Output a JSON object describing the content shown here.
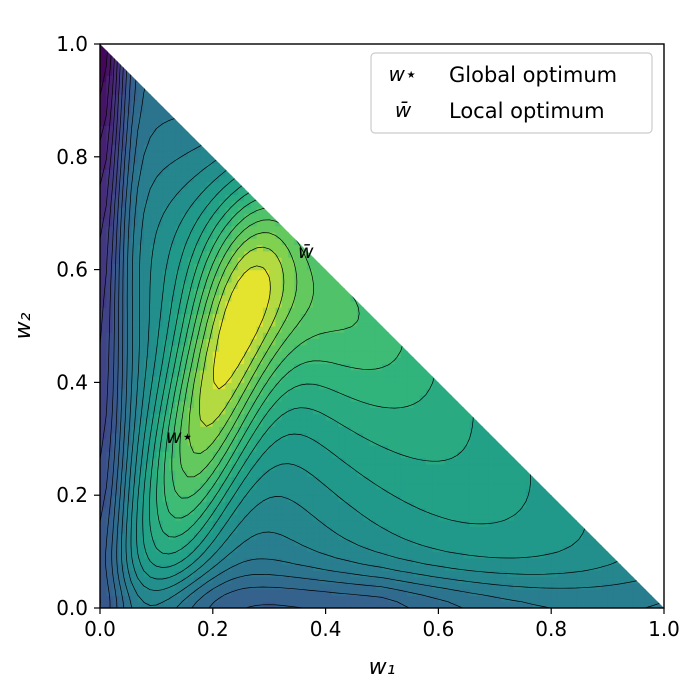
{
  "chart_data": {
    "type": "contour",
    "domain": "simplex w1 + w2 <= 1",
    "xlabel": "w₁",
    "ylabel": "w₂",
    "xlim": [
      0.0,
      1.0
    ],
    "ylim": [
      0.0,
      1.0
    ],
    "xticks": [
      "0.0",
      "0.2",
      "0.4",
      "0.6",
      "0.8",
      "1.0"
    ],
    "yticks": [
      "0.0",
      "0.2",
      "0.4",
      "0.6",
      "0.8",
      "1.0"
    ],
    "colormap": "viridis",
    "grid": false,
    "legend_position": "top-right",
    "legend": [
      {
        "symbol": "w⋆",
        "label": "Global optimum"
      },
      {
        "symbol": "w̄",
        "label": "Local optimum"
      }
    ],
    "points": [
      {
        "name": "global-optimum",
        "label": "w⋆",
        "x": 0.17,
        "y": 0.31
      },
      {
        "name": "local-optimum",
        "label": "w̄",
        "x": 0.36,
        "y": 0.62
      }
    ]
  }
}
